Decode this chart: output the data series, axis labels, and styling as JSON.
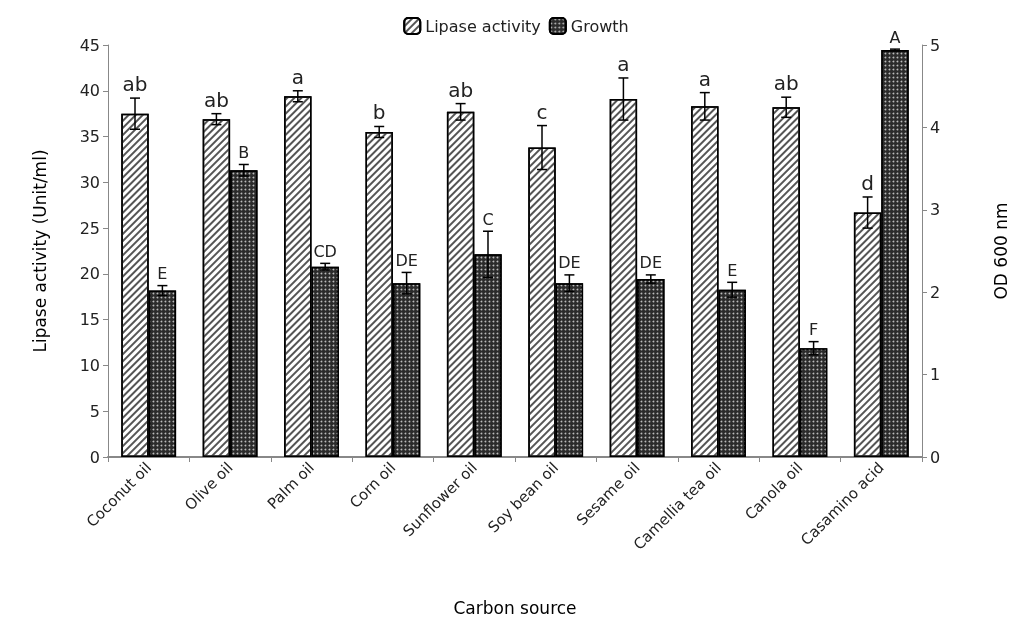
{
  "chart_data": {
    "type": "bar",
    "xlabel": "Carbon source",
    "ylabel": "Lipase activity (Unit/ml)",
    "y2label": "OD 600 nm",
    "categories": [
      "Coconut oil",
      "Olive oil",
      "Palm oil",
      "Corn oil",
      "Sunflower oil",
      "Soy bean oil",
      "Sesame oil",
      "Camellia tea oil",
      "Canola oil",
      "Casamino acid"
    ],
    "series": [
      {
        "name": "Lipase activity",
        "color": "#ffffff",
        "values": [
          37.5,
          36.9,
          39.4,
          35.5,
          37.7,
          33.8,
          39.1,
          38.3,
          38.2,
          26.7
        ],
        "errors": [
          1.7,
          0.6,
          0.6,
          0.6,
          0.9,
          2.4,
          2.3,
          1.5,
          1.1,
          1.7
        ],
        "value_labels": [
          "ab",
          "ab",
          "a",
          "b",
          "ab",
          "c",
          "a",
          "a",
          "ab",
          "d"
        ]
      },
      {
        "name": "Growth",
        "color": "#2b2b2b",
        "axis": "y2",
        "values": [
          2.02,
          3.48,
          2.31,
          2.11,
          2.46,
          2.11,
          2.16,
          2.03,
          1.32,
          4.94
        ],
        "errors": [
          0.06,
          0.07,
          0.04,
          0.13,
          0.28,
          0.1,
          0.05,
          0.09,
          0.08,
          0.01
        ],
        "value_labels": [
          "E",
          "B",
          "CD",
          "DE",
          "C",
          "DE",
          "DE",
          "E",
          "F",
          "A"
        ]
      }
    ],
    "ylim": [
      0,
      45
    ],
    "yticks": [
      0,
      5,
      10,
      15,
      20,
      25,
      30,
      35,
      40,
      45
    ],
    "y2lim": [
      0,
      5
    ],
    "y2ticks": [
      0,
      1,
      2,
      3,
      4,
      5
    ],
    "legend": "top"
  }
}
